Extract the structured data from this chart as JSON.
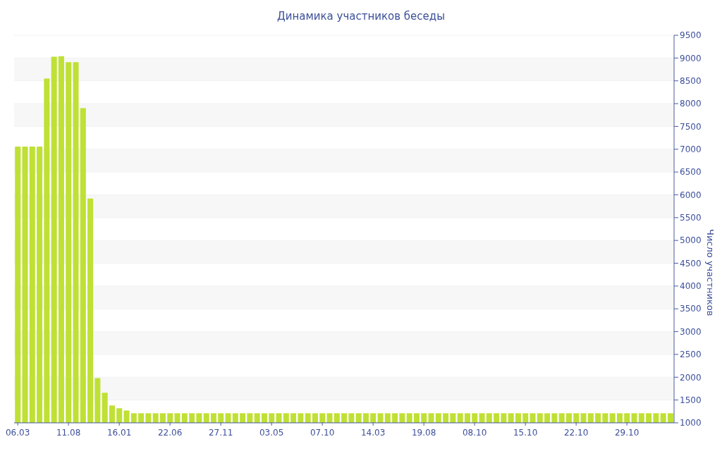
{
  "chart_data": {
    "type": "bar",
    "title": "Динамика участников беседы",
    "ylabel": "Число участников",
    "categories": [
      "06.03",
      null,
      null,
      null,
      null,
      null,
      null,
      "11.08",
      null,
      null,
      null,
      null,
      null,
      null,
      "16.01",
      null,
      null,
      null,
      null,
      null,
      null,
      "22.06",
      null,
      null,
      null,
      null,
      null,
      null,
      "27.11",
      null,
      null,
      null,
      null,
      null,
      null,
      "03.05",
      null,
      null,
      null,
      null,
      null,
      null,
      "07.10",
      null,
      null,
      null,
      null,
      null,
      null,
      "14.03",
      null,
      null,
      null,
      null,
      null,
      null,
      "19.08",
      null,
      null,
      null,
      null,
      null,
      null,
      "08.10",
      null,
      null,
      null,
      null,
      null,
      null,
      "15.10",
      null,
      null,
      null,
      null,
      null,
      null,
      "22.10",
      null,
      null,
      null,
      null,
      null,
      null,
      "29.10",
      null,
      null,
      null,
      null,
      null,
      null
    ],
    "values": [
      7060,
      7060,
      7060,
      7060,
      8550,
      9030,
      9040,
      8910,
      8910,
      7900,
      5920,
      1980,
      1660,
      1380,
      1320,
      1270,
      1210,
      1210,
      1210,
      1210,
      1210,
      1210,
      1210,
      1210,
      1210,
      1210,
      1210,
      1210,
      1210,
      1210,
      1210,
      1210,
      1210,
      1210,
      1210,
      1210,
      1210,
      1210,
      1210,
      1210,
      1210,
      1210,
      1210,
      1210,
      1210,
      1210,
      1210,
      1210,
      1210,
      1210,
      1210,
      1210,
      1210,
      1210,
      1210,
      1210,
      1210,
      1210,
      1210,
      1210,
      1210,
      1210,
      1210,
      1210,
      1210,
      1210,
      1210,
      1210,
      1210,
      1210,
      1210,
      1210,
      1210,
      1210,
      1210,
      1210,
      1210,
      1210,
      1210,
      1210,
      1210,
      1210,
      1210,
      1210,
      1210,
      1210,
      1210,
      1210,
      1210,
      1210,
      1210
    ],
    "color": "#bfe034",
    "ylim": [
      1000,
      9500
    ],
    "yticks": [
      1000,
      1500,
      2000,
      2500,
      3000,
      3500,
      4000,
      4500,
      5000,
      5500,
      6000,
      6500,
      7000,
      7500,
      8000,
      8500,
      9000,
      9500
    ],
    "grid": "y"
  }
}
